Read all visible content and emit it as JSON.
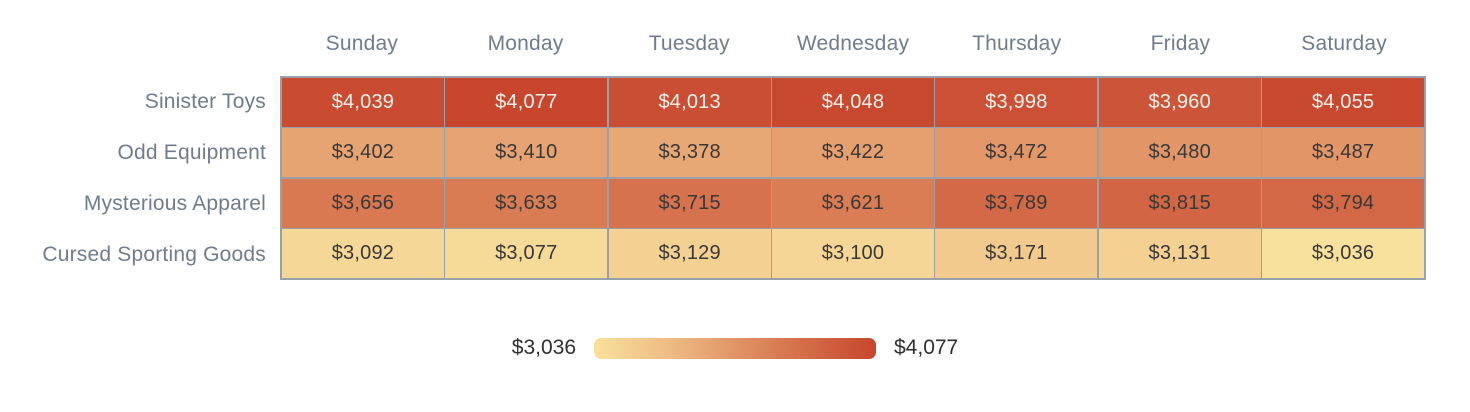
{
  "chart_data": {
    "type": "heatmap",
    "columns": [
      "Sunday",
      "Monday",
      "Tuesday",
      "Wednesday",
      "Thursday",
      "Friday",
      "Saturday"
    ],
    "rows": [
      "Sinister Toys",
      "Odd Equipment",
      "Mysterious Apparel",
      "Cursed Sporting Goods"
    ],
    "series": [
      {
        "name": "Sinister Toys",
        "values": [
          4039,
          4077,
          4013,
          4048,
          3998,
          3960,
          4055
        ]
      },
      {
        "name": "Odd Equipment",
        "values": [
          3402,
          3410,
          3378,
          3422,
          3472,
          3480,
          3487
        ]
      },
      {
        "name": "Mysterious Apparel",
        "values": [
          3656,
          3633,
          3715,
          3621,
          3789,
          3815,
          3794
        ]
      },
      {
        "name": "Cursed Sporting Goods",
        "values": [
          3092,
          3077,
          3129,
          3100,
          3171,
          3131,
          3036
        ]
      }
    ],
    "value_prefix": "$",
    "min": 3036,
    "max": 4077,
    "legend": {
      "min_label": "$3,036",
      "max_label": "$4,077",
      "position": "bottom"
    },
    "colors": {
      "scale_stops": [
        {
          "t": 0.0,
          "color": "#f8e19d"
        },
        {
          "t": 0.35,
          "color": "#e7a473"
        },
        {
          "t": 0.57,
          "color": "#d97c54"
        },
        {
          "t": 1.0,
          "color": "#c8462e"
        }
      ],
      "cell_text_dark": "#383838",
      "cell_text_light": "#f6f1ea",
      "axis_label_color": "#707c8d",
      "grid_border_color": "#98a0aa"
    },
    "grid": "on",
    "title": "",
    "xlabel": "",
    "ylabel": ""
  }
}
